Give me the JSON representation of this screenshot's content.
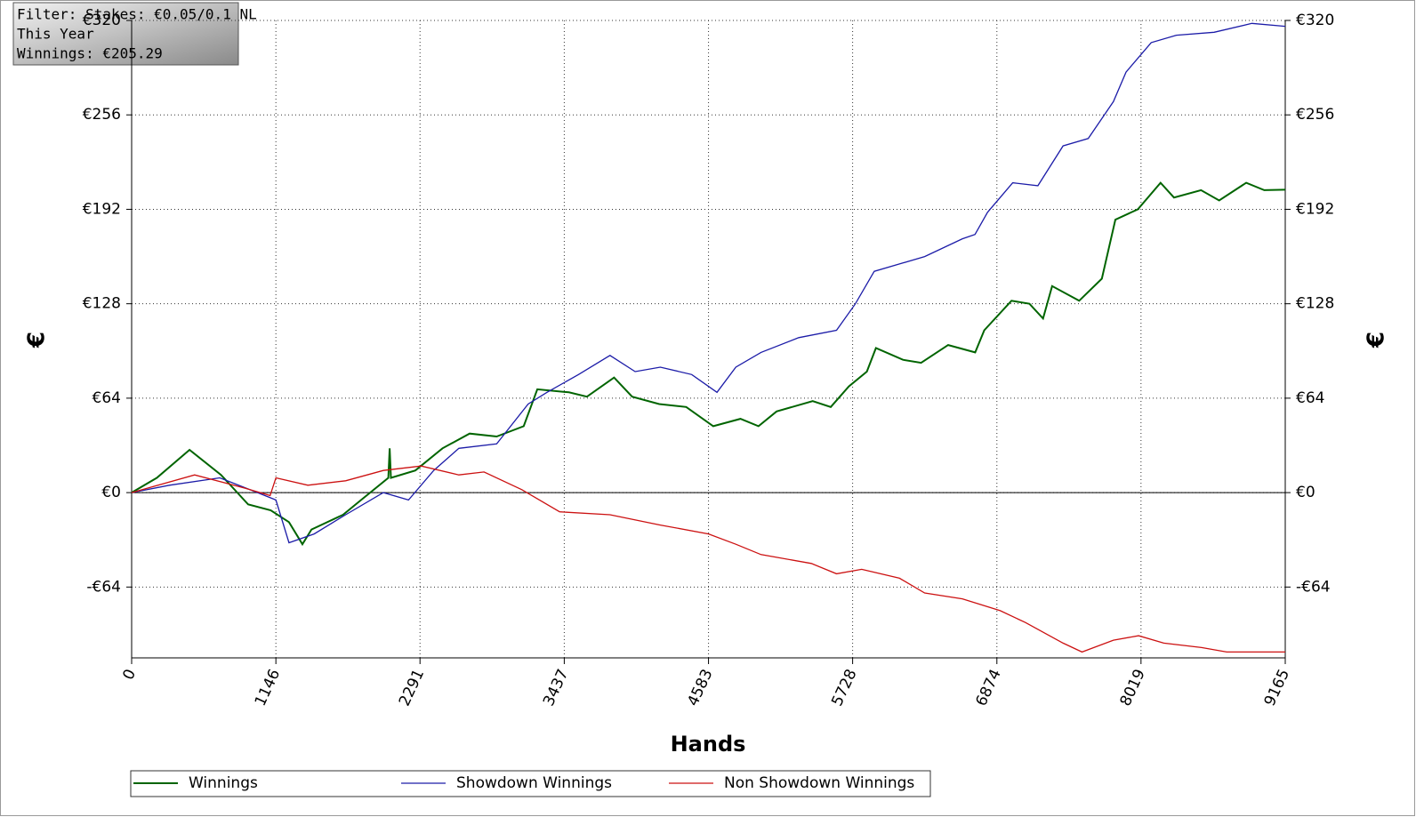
{
  "chart_data": {
    "type": "line",
    "annotations": [
      "Filter: Stakes: €0.05/0.1 NL",
      "This Year",
      "Winnings: €205.29"
    ],
    "xlabel": "Hands",
    "ylabel": "€",
    "xlim": [
      0,
      9165
    ],
    "xticks": [
      0,
      1146,
      2291,
      3437,
      4583,
      5728,
      6874,
      8019,
      9165
    ],
    "ylim": [
      -112,
      320
    ],
    "yticks": [
      {
        "value": -64,
        "label": "-€64"
      },
      {
        "value": 0,
        "label": "€0"
      },
      {
        "value": 64,
        "label": "€64"
      },
      {
        "value": 128,
        "label": "€128"
      },
      {
        "value": 192,
        "label": "€192"
      },
      {
        "value": 256,
        "label": "€256"
      },
      {
        "value": 320,
        "label": "€320"
      }
    ],
    "grid": true,
    "legend": "bottom",
    "series": [
      {
        "name": "Winnings",
        "color": "#006400",
        "x": [
          0,
          200,
          460,
          710,
          926,
          1105,
          1250,
          1357,
          1429,
          1680,
          1823,
          2039,
          2050,
          2060,
          2254,
          2470,
          2685,
          2900,
          3115,
          3223,
          3474,
          3617,
          3833,
          3976,
          4191,
          4406,
          4621,
          4837,
          4980,
          5124,
          5411,
          5554,
          5698,
          5841,
          5913,
          6128,
          6272,
          6487,
          6702,
          6774,
          6990,
          7133,
          7241,
          7313,
          7528,
          7708,
          7815,
          7994,
          8174,
          8281,
          8496,
          8640,
          8855,
          8998,
          9165
        ],
        "values": [
          0,
          10,
          29,
          12,
          -8,
          -12,
          -20,
          -35,
          -25,
          -15,
          -5,
          10,
          30,
          10,
          15,
          30,
          40,
          38,
          45,
          70,
          68,
          65,
          78,
          65,
          60,
          58,
          45,
          50,
          45,
          55,
          62,
          58,
          72,
          82,
          98,
          90,
          88,
          100,
          95,
          110,
          130,
          128,
          118,
          140,
          130,
          145,
          185,
          192,
          210,
          200,
          205,
          198,
          210,
          205,
          205.29
        ]
      },
      {
        "name": "Showdown Winnings",
        "color": "#1c1ca8",
        "x": [
          0,
          300,
          700,
          1000,
          1146,
          1250,
          1450,
          1700,
          2000,
          2200,
          2400,
          2600,
          2900,
          3150,
          3300,
          3550,
          3800,
          4000,
          4200,
          4450,
          4650,
          4800,
          5000,
          5300,
          5600,
          5750,
          5900,
          6100,
          6300,
          6600,
          6700,
          6800,
          7000,
          7200,
          7400,
          7600,
          7800,
          7900,
          8100,
          8300,
          8600,
          8900,
          9165
        ],
        "values": [
          0,
          5,
          10,
          0,
          -5,
          -34,
          -28,
          -15,
          0,
          -5,
          15,
          30,
          33,
          60,
          68,
          80,
          93,
          82,
          85,
          80,
          68,
          85,
          95,
          105,
          110,
          128,
          150,
          155,
          160,
          172,
          175,
          190,
          210,
          208,
          235,
          240,
          265,
          285,
          305,
          310,
          312,
          318,
          316
        ]
      },
      {
        "name": "Non Showdown Winnings",
        "color": "#cc1111",
        "x": [
          0,
          500,
          900,
          1100,
          1146,
          1400,
          1700,
          2000,
          2300,
          2600,
          2800,
          3100,
          3400,
          3800,
          4200,
          4583,
          4800,
          5000,
          5400,
          5600,
          5800,
          6100,
          6300,
          6600,
          6900,
          7100,
          7400,
          7550,
          7800,
          8000,
          8200,
          8500,
          8700,
          9165
        ],
        "values": [
          0,
          12,
          3,
          -2,
          10,
          5,
          8,
          15,
          18,
          12,
          14,
          2,
          -13,
          -15,
          -22,
          -28,
          -35,
          -42,
          -48,
          -55,
          -52,
          -58,
          -68,
          -72,
          -80,
          -88,
          -102,
          -108,
          -100,
          -97,
          -102,
          -105,
          -108,
          -108
        ]
      }
    ]
  }
}
